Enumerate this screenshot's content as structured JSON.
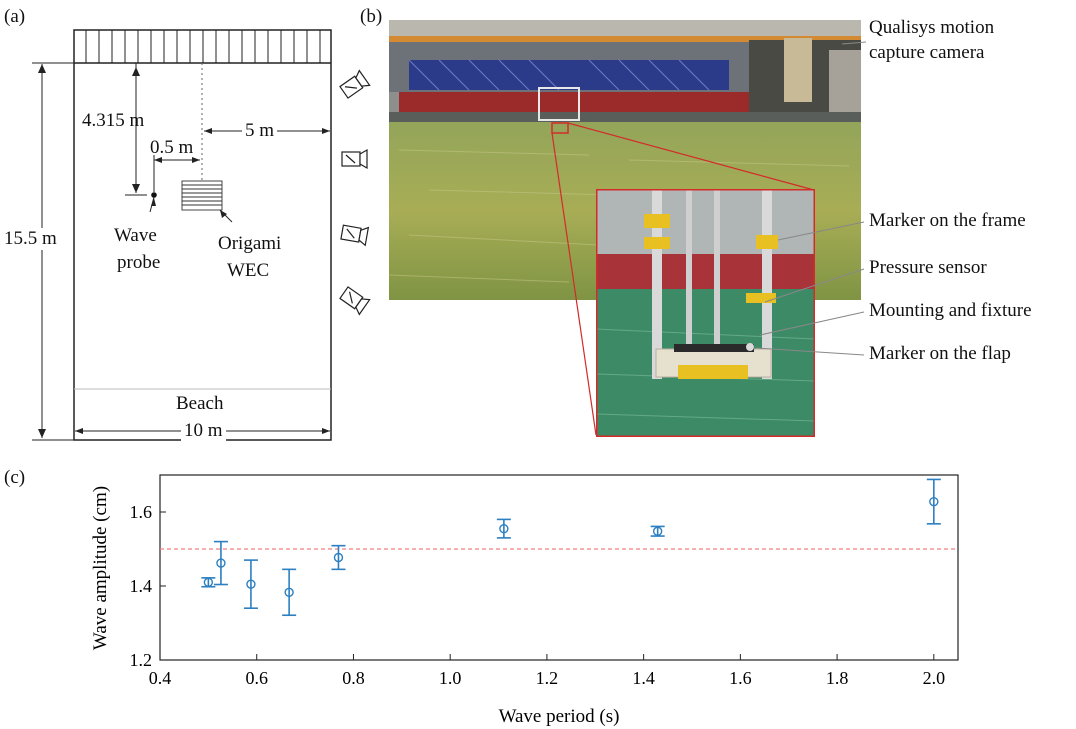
{
  "panel_a": {
    "label": "(a)",
    "dim_distance": "4.315 m",
    "dim_offset": "0.5 m",
    "dim_side": "5 m",
    "dim_length": "15.5 m",
    "dim_width": "10 m",
    "probe_label_1": "Wave",
    "probe_label_2": "probe",
    "wec_label_1": "Origami",
    "wec_label_2": "WEC",
    "beach_label": "Beach"
  },
  "panel_b": {
    "label": "(b)",
    "camera_label_1": "Qualisys motion",
    "camera_label_2": "capture camera",
    "callout_frame": "Marker on the frame",
    "callout_pressure": "Pressure sensor",
    "callout_mounting": "Mounting and fixture",
    "callout_flap": "Marker on the flap"
  },
  "panel_c": {
    "label": "(c)",
    "colors": {
      "points": "#2c7fc1",
      "reference": "#f08080"
    }
  },
  "chart_data": {
    "type": "scatter",
    "xlabel": "Wave period (s)",
    "ylabel": "Wave amplitude (cm)",
    "xlim": [
      0.4,
      2.05
    ],
    "ylim": [
      1.2,
      1.7
    ],
    "xticks": [
      "0.4",
      "0.6",
      "0.8",
      "1.0",
      "1.2",
      "1.4",
      "1.6",
      "1.8",
      "2.0"
    ],
    "yticks": [
      "1.2",
      "1.4",
      "1.6"
    ],
    "reference_line": 1.5,
    "points": [
      {
        "x": 0.5,
        "y": 1.41,
        "err": 0.012
      },
      {
        "x": 0.526,
        "y": 1.462,
        "err": 0.058
      },
      {
        "x": 0.588,
        "y": 1.405,
        "err": 0.065
      },
      {
        "x": 0.667,
        "y": 1.383,
        "err": 0.062
      },
      {
        "x": 0.769,
        "y": 1.477,
        "err": 0.032
      },
      {
        "x": 1.111,
        "y": 1.555,
        "err": 0.025
      },
      {
        "x": 1.429,
        "y": 1.548,
        "err": 0.013
      },
      {
        "x": 2.0,
        "y": 1.628,
        "err": 0.06
      }
    ]
  }
}
